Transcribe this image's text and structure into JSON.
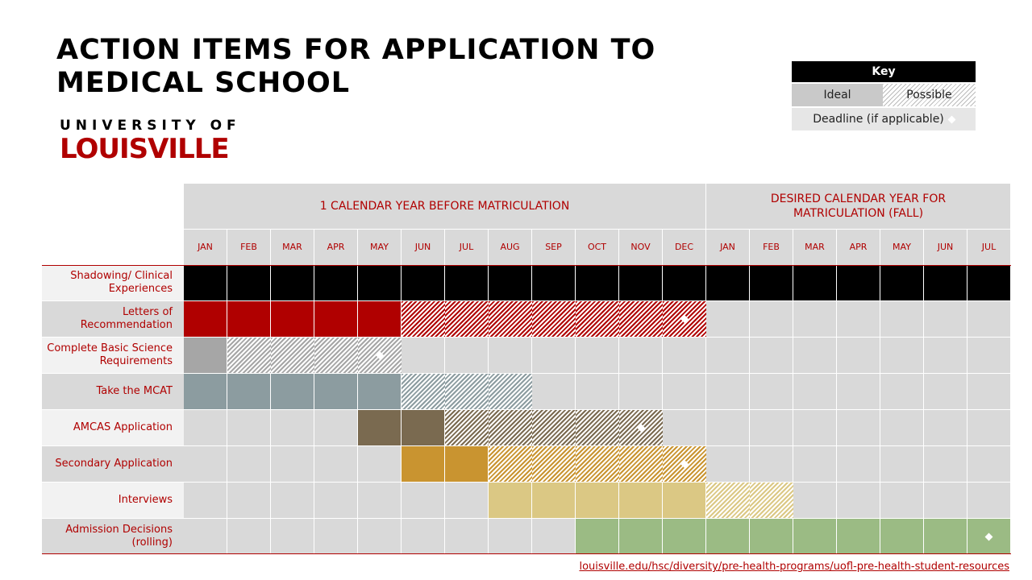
{
  "title": "ACTION ITEMS FOR APPLICATION TO MEDICAL SCHOOL",
  "logo": {
    "line1": "UNIVERSITY OF",
    "line2": "LOUISVILLE"
  },
  "key": {
    "title": "Key",
    "ideal": "Ideal",
    "possible": "Possible",
    "deadline": "Deadline (if applicable)"
  },
  "groups": [
    {
      "label": "1 CALENDAR YEAR BEFORE MATRICULATION",
      "months": 12
    },
    {
      "label": "DESIRED CALENDAR YEAR FOR MATRICULATION (FALL)",
      "months": 7
    }
  ],
  "months": [
    "JAN",
    "FEB",
    "MAR",
    "APR",
    "MAY",
    "JUN",
    "JUL",
    "AUG",
    "SEP",
    "OCT",
    "NOV",
    "DEC",
    "JAN",
    "FEB",
    "MAR",
    "APR",
    "MAY",
    "JUN",
    "JUL"
  ],
  "empty_color": "#d9d9d9",
  "rows": [
    {
      "label": "Shadowing/ Clinical Experiences",
      "color": "#000000",
      "ideal": [
        0,
        18
      ],
      "possible": null,
      "deadline": null
    },
    {
      "label": "Letters of Recommendation",
      "color": "#b00000",
      "ideal": [
        0,
        4
      ],
      "possible": [
        5,
        11
      ],
      "deadline": 11
    },
    {
      "label": "Complete Basic Science Requirements",
      "color": "#a6a6a6",
      "ideal": [
        0,
        0
      ],
      "possible": [
        1,
        4
      ],
      "deadline": 4
    },
    {
      "label": "Take the MCAT",
      "color": "#8c9ca0",
      "ideal": [
        0,
        4
      ],
      "possible": [
        5,
        7
      ],
      "deadline": null
    },
    {
      "label": "AMCAS Application",
      "color": "#7a6a50",
      "ideal": [
        4,
        5
      ],
      "possible": [
        6,
        10
      ],
      "deadline": 10
    },
    {
      "label": "Secondary Application",
      "color": "#c99430",
      "ideal": [
        5,
        6
      ],
      "possible": [
        7,
        11
      ],
      "deadline": 11
    },
    {
      "label": "Interviews",
      "color": "#dbc884",
      "ideal": [
        7,
        11
      ],
      "possible": [
        12,
        13
      ],
      "deadline": null
    },
    {
      "label": "Admission Decisions (rolling)",
      "color": "#9bbb84",
      "ideal": [
        9,
        18
      ],
      "possible": null,
      "deadline": 18
    }
  ],
  "footer_link": "louisville.edu/hsc/diversity/pre-health-programs/uofl-pre-health-student-resources"
}
